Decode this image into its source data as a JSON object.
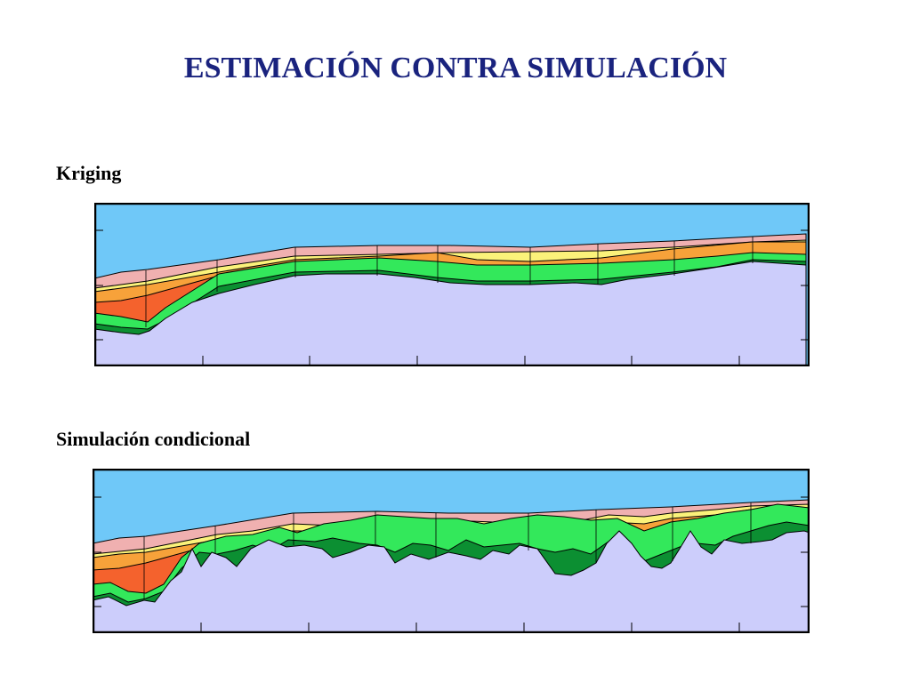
{
  "title": "ESTIMACIÓN CONTRA SIMULACIÓN",
  "sections": [
    {
      "label": "Kriging"
    },
    {
      "label": "Simulación condicional"
    }
  ],
  "colors": {
    "sky": "#6fc8f8",
    "pink": "#f0b0b0",
    "yellow": "#fbf27a",
    "orange": "#f7a23a",
    "red_orange": "#f4622d",
    "light_green": "#33e85b",
    "dark_green": "#0c8f32",
    "basement": "#cccdfb",
    "outline": "#000000",
    "title_color": "#1a237e"
  }
}
